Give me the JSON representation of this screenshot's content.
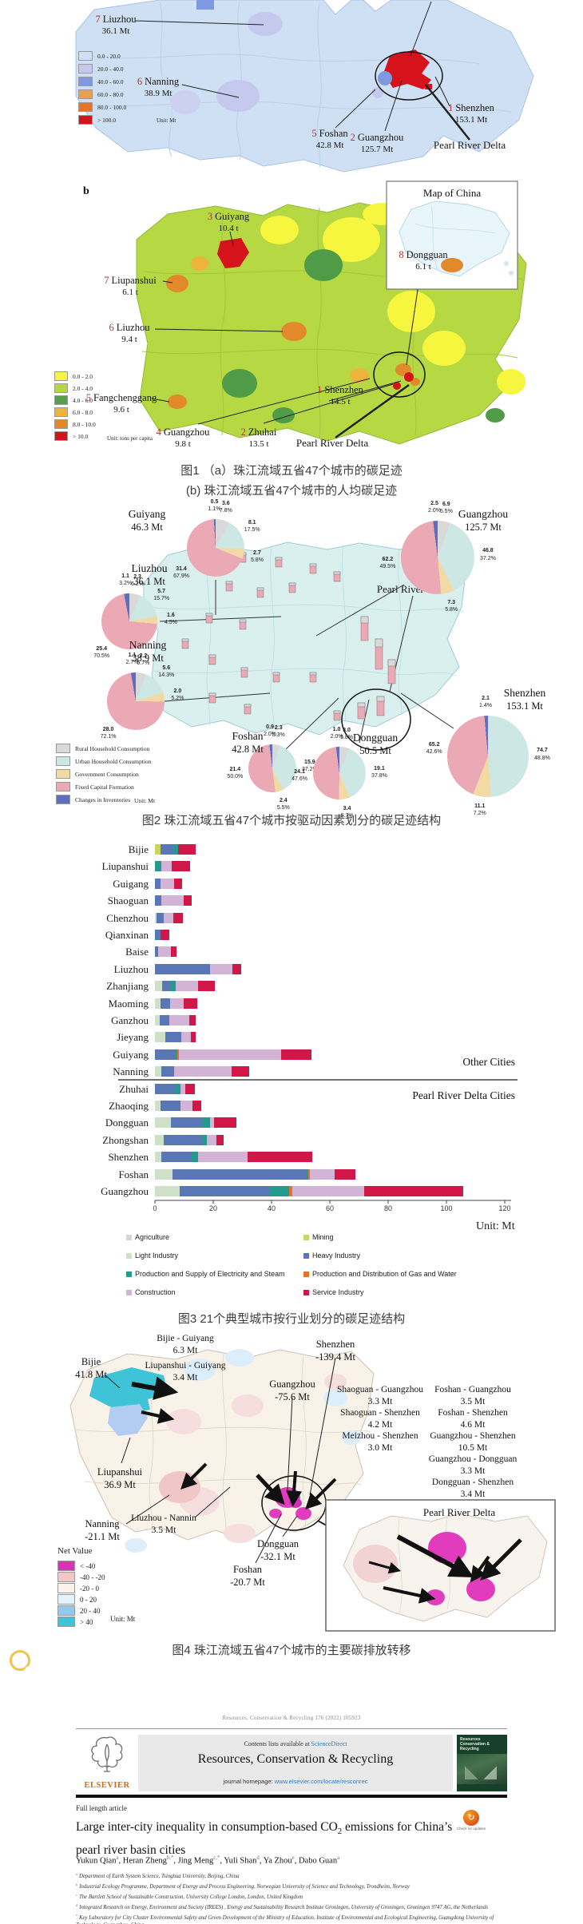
{
  "captions": {
    "fig1_line1": "图1 （a）珠江流域五省47个城市的碳足迹",
    "fig1_line2": "(b) 珠江流域五省47个城市的人均碳足迹",
    "fig2": "图2 珠江流域五省47个城市按驱动因素划分的碳足迹结构",
    "fig3": "图3 21个典型城市按行业划分的碳足迹结构",
    "fig4": "图4 珠江流域五省47个城市的主要碳排放转移"
  },
  "badge": {
    "label": "原文信息",
    "color": "#b7cf92",
    "ring_color": "#f0c34a"
  },
  "chart_data": [
    {
      "id": "fig1a",
      "type": "choropleth",
      "panel": "a",
      "unit": "Unit: Mt",
      "region_label": "Pearl River Delta",
      "cities": [
        {
          "rank": "7",
          "name": "Liuzhou",
          "label": "36.1 Mt"
        },
        {
          "rank": "6",
          "name": "Nanning",
          "label": "38.9 Mt"
        },
        {
          "rank": "5",
          "name": "Foshan",
          "label": "42.8 Mt"
        },
        {
          "rank": "2",
          "name": "Guangzhou",
          "label": "125.7 Mt"
        },
        {
          "rank": "1",
          "name": "Shenzhen",
          "label": "153.1 Mt"
        }
      ],
      "legend": [
        {
          "label": "0.0 - 20.0",
          "color": "#cfe0f4"
        },
        {
          "label": "20.0 - 40.0",
          "color": "#c5c9ee"
        },
        {
          "label": "40.0 - 60.0",
          "color": "#7e99e0"
        },
        {
          "label": "60.0 - 80.0",
          "color": "#e9a050"
        },
        {
          "label": "80.0 - 100.0",
          "color": "#e2762e"
        },
        {
          "label": "> 100.0",
          "color": "#d6121b"
        }
      ]
    },
    {
      "id": "fig1b",
      "type": "choropleth",
      "panel": "b",
      "unit": "Unit: tons per capita",
      "region_label": "Pearl River Delta",
      "inset_title": "Map of China",
      "cities": [
        {
          "rank": "3",
          "name": "Guiyang",
          "label": "10.4 t"
        },
        {
          "rank": "7",
          "name": "Liupanshui",
          "label": "6.1 t"
        },
        {
          "rank": "6",
          "name": "Liuzhou",
          "label": "9.4 t"
        },
        {
          "rank": "8",
          "name": "Dongguan",
          "label": "6.1 t"
        },
        {
          "rank": "5",
          "name": "Fangchenggang",
          "label": "9.6 t"
        },
        {
          "rank": "4",
          "name": "Guangzhou",
          "label": "9.8 t"
        },
        {
          "rank": "2",
          "name": "Zhuhai",
          "label": "13.5 t"
        },
        {
          "rank": "1",
          "name": "Shenzhen",
          "label": "14.5 t"
        }
      ],
      "legend": [
        {
          "label": "0.0 - 2.0",
          "color": "#f8f442"
        },
        {
          "label": "2.0 - 4.0",
          "color": "#b5d844"
        },
        {
          "label": "4.0 - 6.0",
          "color": "#56a04a"
        },
        {
          "label": "6.0 - 8.0",
          "color": "#edb43c"
        },
        {
          "label": "8.0 - 10.0",
          "color": "#e2882a"
        },
        {
          "label": "> 10.0",
          "color": "#d6121b"
        }
      ]
    },
    {
      "id": "fig2",
      "type": "pie",
      "unit": "Unit: Mt",
      "region_label": "Pearl River Delta",
      "legend": [
        {
          "label": "Rural Household Consumption",
          "color": "#d9d9d9"
        },
        {
          "label": "Urban Household Consumption",
          "color": "#cde8e4"
        },
        {
          "label": "Government Consumption",
          "color": "#f3d9a4"
        },
        {
          "label": "Fixed Capital Formation",
          "color": "#eba8b5"
        },
        {
          "label": "Changes in Inventories",
          "color": "#5f6fc0"
        }
      ],
      "pies": [
        {
          "name": "Guiyang",
          "total": "46.3 Mt",
          "slices": [
            {
              "cat": "Rural Household Consumption",
              "value": "3.6",
              "pct": 7.8,
              "pct_label": "7.8%"
            },
            {
              "cat": "Urban Household Consumption",
              "value": "8.1",
              "pct": 17.5,
              "pct_label": "17.5%"
            },
            {
              "cat": "Government Consumption",
              "value": "2.7",
              "pct": 5.8,
              "pct_label": "5.8%"
            },
            {
              "cat": "Fixed Capital Formation",
              "value": "31.4",
              "pct": 67.9,
              "pct_label": "67.9%"
            },
            {
              "cat": "Changes in Inventories",
              "value": "0.5",
              "pct": 1.1,
              "pct_label": "1.1%"
            }
          ]
        },
        {
          "name": "Guangzhou",
          "total": "125.7 Mt",
          "slices": [
            {
              "cat": "Rural Household Consumption",
              "value": "6.9",
              "pct": 5.5,
              "pct_label": "5.5%"
            },
            {
              "cat": "Urban Household Consumption",
              "value": "46.8",
              "pct": 37.2,
              "pct_label": "37.2%"
            },
            {
              "cat": "Government Consumption",
              "value": "7.3",
              "pct": 5.8,
              "pct_label": "5.8%"
            },
            {
              "cat": "Fixed Capital Formation",
              "value": "62.2",
              "pct": 49.5,
              "pct_label": "49.5%"
            },
            {
              "cat": "Changes in Inventories",
              "value": "2.5",
              "pct": 2.0,
              "pct_label": "2.0%"
            }
          ]
        },
        {
          "name": "Liuzhou",
          "total": "36.1 Mt",
          "slices": [
            {
              "cat": "Rural Household Consumption",
              "value": "2.3",
              "pct": 6.2,
              "pct_label": "6.2%"
            },
            {
              "cat": "Urban Household Consumption",
              "value": "5.7",
              "pct": 15.7,
              "pct_label": "15.7%"
            },
            {
              "cat": "Government Consumption",
              "value": "1.6",
              "pct": 4.5,
              "pct_label": "4.5%"
            },
            {
              "cat": "Fixed Capital Formation",
              "value": "25.4",
              "pct": 70.5,
              "pct_label": "70.5%"
            },
            {
              "cat": "Changes in Inventories",
              "value": "1.1",
              "pct": 3.2,
              "pct_label": "3.2%"
            }
          ]
        },
        {
          "name": "Nanning",
          "total": "38.9 Mt",
          "slices": [
            {
              "cat": "Rural Household Consumption",
              "value": "2.2",
              "pct": 5.7,
              "pct_label": "5.7%"
            },
            {
              "cat": "Urban Household Consumption",
              "value": "5.6",
              "pct": 14.3,
              "pct_label": "14.3%"
            },
            {
              "cat": "Government Consumption",
              "value": "2.0",
              "pct": 5.2,
              "pct_label": "5.2%"
            },
            {
              "cat": "Fixed Capital Formation",
              "value": "28.0",
              "pct": 72.1,
              "pct_label": "72.1%"
            },
            {
              "cat": "Changes in Inventories",
              "value": "1.1",
              "pct": 2.7,
              "pct_label": "2.7%"
            }
          ]
        },
        {
          "name": "Foshan",
          "total": "42.8 Mt",
          "slices": [
            {
              "cat": "Rural Household Consumption",
              "value": "2.3",
              "pct": 5.3,
              "pct_label": "5.3%"
            },
            {
              "cat": "Urban Household Consumption",
              "value": "15.9",
              "pct": 37.2,
              "pct_label": "37.2%"
            },
            {
              "cat": "Government Consumption",
              "value": "2.4",
              "pct": 5.5,
              "pct_label": "5.5%"
            },
            {
              "cat": "Fixed Capital Formation",
              "value": "21.4",
              "pct": 50.0,
              "pct_label": "50.0%"
            },
            {
              "cat": "Changes in Inventories",
              "value": "0.9",
              "pct": 2.0,
              "pct_label": "2.0%"
            }
          ]
        },
        {
          "name": "Dongguan",
          "total": "50.5 Mt",
          "slices": [
            {
              "cat": "Rural Household Consumption",
              "value": "3.0",
              "pct": 5.8,
              "pct_label": "5.8%"
            },
            {
              "cat": "Urban Household Consumption",
              "value": "19.1",
              "pct": 37.8,
              "pct_label": "37.8%"
            },
            {
              "cat": "Government Consumption",
              "value": "3.4",
              "pct": 6.7,
              "pct_label": "6.7%"
            },
            {
              "cat": "Fixed Capital Formation",
              "value": "24.1",
              "pct": 47.6,
              "pct_label": "47.6%"
            },
            {
              "cat": "Changes in Inventories",
              "value": "1.0",
              "pct": 2.0,
              "pct_label": "2.0%"
            }
          ]
        },
        {
          "name": "Shenzhen",
          "total": "153.1 Mt",
          "slices": [
            {
              "cat": "Urban Household Consumption",
              "value": "74.7",
              "pct": 48.8,
              "pct_label": "48.8%"
            },
            {
              "cat": "Government Consumption",
              "value": "11.1",
              "pct": 7.2,
              "pct_label": "7.2%"
            },
            {
              "cat": "Fixed Capital Formation",
              "value": "65.2",
              "pct": 42.6,
              "pct_label": "42.6%"
            },
            {
              "cat": "Changes in Inventories",
              "value": "2.1",
              "pct": 1.4,
              "pct_label": "1.4%"
            }
          ]
        }
      ]
    },
    {
      "id": "fig3",
      "type": "bar",
      "stacked": true,
      "orientation": "horizontal",
      "unit": "Unit: Mt",
      "xlim": [
        0,
        120
      ],
      "xticks": [
        0,
        20,
        40,
        60,
        80,
        100,
        120
      ],
      "group_labels": [
        "Other Cities",
        "Pearl River Delta Cities"
      ],
      "categories": [
        "Bijie",
        "Liupanshui",
        "Guigang",
        "Shaoguan",
        "Chenzhou",
        "Qianxinan",
        "Baise",
        "Liuzhou",
        "Zhanjiang",
        "Maoming",
        "Ganzhou",
        "Jieyang",
        "Guiyang",
        "Nanning",
        "Zhuhai",
        "Zhaoqing",
        "Dongguan",
        "Zhongshan",
        "Shenzhen",
        "Foshan",
        "Guangzhou"
      ],
      "series": [
        {
          "name": "Agriculture",
          "color": "#d6d6d6",
          "values": [
            0,
            0,
            0,
            0,
            0,
            0,
            0,
            0,
            0.5,
            0,
            0,
            0,
            0,
            0,
            0,
            0,
            0,
            0,
            0,
            0,
            0
          ]
        },
        {
          "name": "Mining",
          "color": "#ccd45e",
          "values": [
            1.9,
            0,
            0,
            0,
            0,
            0,
            0,
            0,
            0,
            0,
            0,
            0,
            0,
            0,
            0,
            0,
            0,
            0,
            0,
            0,
            0
          ]
        },
        {
          "name": "Light Industry",
          "color": "#cfe0c8",
          "values": [
            0,
            0,
            0,
            0,
            0.5,
            0,
            0,
            0,
            2.1,
            1.9,
            1.6,
            3.5,
            0,
            2.3,
            0,
            1.9,
            5.5,
            2.9,
            2.3,
            6.1,
            8.4
          ]
        },
        {
          "name": "Heavy Industry",
          "color": "#5a77b5",
          "values": [
            4.5,
            0,
            1.9,
            2.3,
            2.4,
            1.9,
            1.0,
            18.8,
            3.0,
            3.2,
            3.2,
            5.6,
            6.9,
            4.4,
            6.8,
            6.8,
            11.0,
            13.6,
            10.0,
            45.6,
            30.8
          ]
        },
        {
          "name": "Production and Supply of Electricity and Steam",
          "color": "#229a8d",
          "values": [
            1.6,
            2.3,
            0,
            0,
            0,
            0,
            0,
            0,
            1.5,
            0,
            0,
            0,
            0.9,
            0,
            1.9,
            0,
            2.3,
            1.3,
            2.6,
            0.9,
            6.9
          ]
        },
        {
          "name": "Production and Distribution of Gas and Water",
          "color": "#e0742c",
          "values": [
            0,
            0,
            0,
            0,
            0,
            0,
            0,
            0,
            0,
            0,
            0,
            0,
            0.3,
            0,
            0,
            0,
            0,
            0,
            0,
            0.6,
            0.9
          ]
        },
        {
          "name": "Construction",
          "color": "#d4b4d6",
          "values": [
            0,
            3.5,
            4.8,
            7.7,
            3.4,
            0,
            4.4,
            7.8,
            7.8,
            4.8,
            6.9,
            3.2,
            35.3,
            19.5,
            1.7,
            4.3,
            1.6,
            3.4,
            16.9,
            8.4,
            24.7
          ]
        },
        {
          "name": "Service Industry",
          "color": "#d01747",
          "values": [
            6.0,
            6.2,
            2.6,
            2.6,
            3.2,
            2.9,
            1.9,
            2.9,
            5.6,
            4.7,
            2.3,
            1.6,
            10.4,
            6.2,
            3.2,
            2.9,
            7.5,
            2.5,
            22.3,
            7.1,
            34.2
          ]
        }
      ]
    },
    {
      "id": "fig4",
      "type": "flow-map",
      "unit": "Unit: Mt",
      "inset_title": "Pearl River Delta",
      "legend_title": "Net Value",
      "legend": [
        {
          "label": "< -40",
          "color": "#d633b5"
        },
        {
          "label": "-40 - -20",
          "color": "#f2c7c7"
        },
        {
          "label": "-20 - 0",
          "color": "#faf3ec"
        },
        {
          "label": "0 - 20",
          "color": "#e3f2fb"
        },
        {
          "label": "20 - 40",
          "color": "#93c9ee"
        },
        {
          "label": "> 40",
          "color": "#3ec4d6"
        }
      ],
      "cities": [
        {
          "name": "Bijie",
          "value": "41.8 Mt"
        },
        {
          "name": "Liupanshui",
          "value": "36.9 Mt"
        },
        {
          "name": "Nanning",
          "value": "-21.1 Mt"
        },
        {
          "name": "Guangzhou",
          "value": "-75.6 Mt"
        },
        {
          "name": "Shenzhen",
          "value": "-139.4 Mt"
        },
        {
          "name": "Dongguan",
          "value": "-32.1 Mt"
        },
        {
          "name": "Foshan",
          "value": "-20.7 Mt"
        }
      ],
      "flows": [
        {
          "route": "Bijie - Guiyang",
          "value": "6.3 Mt"
        },
        {
          "route": "Liupanshui - Guiyang",
          "value": "3.4 Mt"
        },
        {
          "route": "Liuzhou - Nannin",
          "value": "3.5 Mt"
        },
        {
          "route": "Shaoguan - Guangzhou",
          "value": "3.3 Mt"
        },
        {
          "route": "Shaoguan - Shenzhen",
          "value": "4.2 Mt"
        },
        {
          "route": "Meizhou - Shenzhen",
          "value": "3.0 Mt"
        },
        {
          "route": "Foshan - Guangzhou",
          "value": "3.5 Mt"
        },
        {
          "route": "Foshan - Shenzhen",
          "value": "4.6 Mt"
        },
        {
          "route": "Guangzhou - Shenzhen",
          "value": "10.5 Mt"
        },
        {
          "route": "Guangzhou - Dongguan",
          "value": "3.3 Mt"
        },
        {
          "route": "Dongguan - Shenzhen",
          "value": "3.4 Mt"
        }
      ]
    }
  ],
  "paper": {
    "running_head": "Resources, Conservation & Recycling 176 (2022) 105923",
    "contents_line": "Contents lists available at ",
    "sciencedirect": "ScienceDirect",
    "journal_title": "Resources, Conservation & Recycling",
    "homepage_label": "journal homepage: ",
    "homepage_url": "www.elsevier.com/locate/resconrec",
    "publisher": "ELSEVIER",
    "cover_lines": [
      "Resources",
      "Conservation &",
      "Recycling"
    ],
    "article_type": "Full length article",
    "check_updates": "Check for updates",
    "title_pre": "Large inter-city inequality in consumption-based CO",
    "title_sub": "2",
    "title_line1_rest": " emissions for China’s",
    "title_line2": "pearl river basin cities",
    "authors": [
      {
        "name": "Yukun Qian",
        "sup": "a"
      },
      {
        "name": "Heran Zheng",
        "sup": "b,*"
      },
      {
        "name": "Jing Meng",
        "sup": "c,*"
      },
      {
        "name": "Yuli Shan",
        "sup": "d"
      },
      {
        "name": "Ya Zhou",
        "sup": "e"
      },
      {
        "name": "Dabo Guan",
        "sup": "a"
      }
    ],
    "affiliations": [
      {
        "sup": "a",
        "text": "Department of Earth System Science, Tsinghua University, Beijing, China"
      },
      {
        "sup": "b",
        "text": "Industrial Ecology Programme, Department of Energy and Process Engineering, Norwegian University of Science and Technology, Trondheim, Norway"
      },
      {
        "sup": "c",
        "text": "The Bartlett School of Sustainable Construction, University College London, London, United Kingdom"
      },
      {
        "sup": "d",
        "text": "Integrated Research on Energy, Environment and Society (IREES) , Energy and Sustainability Research Institute Groningen, University of Groningen, Groningen 9747 AG, the Netherlands"
      },
      {
        "sup": "e",
        "text": "Key Laboratory for City Cluster Environmental Safety and Green Development of the Ministry of Education, Institute of Environmental and Ecological Engineering, Guangdong University of Technology, Guangzhou, China"
      }
    ]
  }
}
